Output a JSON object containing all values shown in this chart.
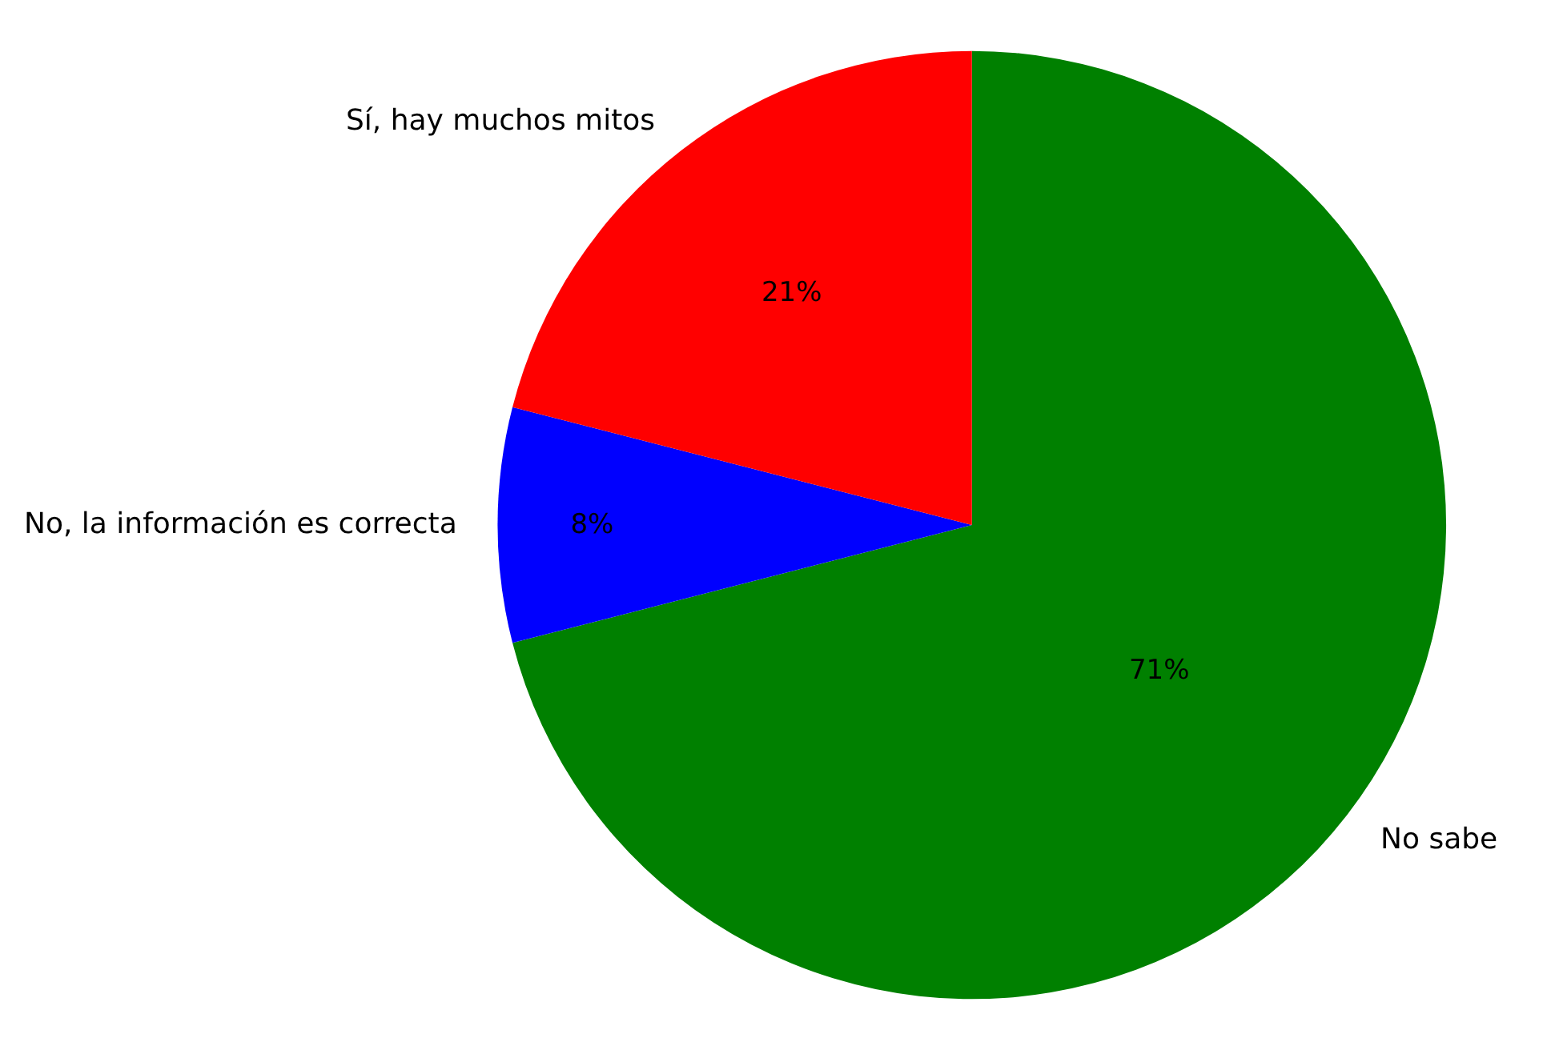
{
  "chart_data": {
    "type": "pie",
    "categories": [
      "Sí, hay muchos mitos",
      "No, la información es correcta",
      "No sabe"
    ],
    "values": [
      21,
      8,
      71
    ],
    "colors": [
      "#ff0000",
      "#0000ff",
      "#008000"
    ],
    "value_labels": [
      "21%",
      "8%",
      "71%"
    ],
    "legend": false
  }
}
